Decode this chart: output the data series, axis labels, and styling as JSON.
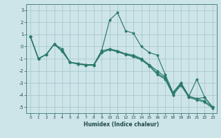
{
  "xlabel": "Humidex (Indice chaleur)",
  "ylabel": "",
  "xlim": [
    -0.5,
    23.5
  ],
  "ylim": [
    -5.5,
    3.5
  ],
  "yticks": [
    -5,
    -4,
    -3,
    -2,
    -1,
    0,
    1,
    2,
    3
  ],
  "xticks": [
    0,
    1,
    2,
    3,
    4,
    5,
    6,
    7,
    8,
    9,
    10,
    11,
    12,
    13,
    14,
    15,
    16,
    17,
    18,
    19,
    20,
    21,
    22,
    23
  ],
  "bg_color": "#cde4e8",
  "line_color": "#2a7a6a",
  "grid_color": "#aac8d0",
  "lines": [
    {
      "x": [
        0,
        1,
        2,
        3,
        4,
        5,
        6,
        7,
        8,
        9,
        10,
        11,
        12,
        13,
        14,
        15,
        16,
        17,
        18,
        19,
        20,
        21,
        22,
        23
      ],
      "y": [
        0.8,
        -1.0,
        -0.65,
        0.2,
        -0.2,
        -1.3,
        -1.4,
        -1.5,
        -1.5,
        -0.3,
        2.2,
        2.8,
        1.3,
        1.1,
        0.0,
        -0.5,
        -0.7,
        -2.3,
        -3.8,
        -3.0,
        -4.1,
        -2.7,
        -4.2,
        -5.0
      ]
    },
    {
      "x": [
        0,
        1,
        2,
        3,
        4,
        5,
        6,
        7,
        8,
        9,
        10,
        11,
        12,
        13,
        14,
        15,
        16,
        17,
        18,
        19,
        20,
        21,
        22,
        23
      ],
      "y": [
        0.8,
        -1.0,
        -0.65,
        0.2,
        -0.35,
        -1.3,
        -1.4,
        -1.5,
        -1.5,
        -0.35,
        -0.2,
        -0.35,
        -0.6,
        -0.7,
        -1.0,
        -1.5,
        -2.0,
        -2.5,
        -3.8,
        -3.0,
        -4.1,
        -4.3,
        -4.2,
        -5.0
      ]
    },
    {
      "x": [
        0,
        1,
        2,
        3,
        4,
        5,
        6,
        7,
        8,
        9,
        10,
        11,
        12,
        13,
        14,
        15,
        16,
        17,
        18,
        19,
        20,
        21,
        22,
        23
      ],
      "y": [
        0.8,
        -1.0,
        -0.65,
        0.2,
        -0.4,
        -1.3,
        -1.45,
        -1.5,
        -1.5,
        -0.5,
        -0.2,
        -0.4,
        -0.65,
        -0.8,
        -1.05,
        -1.55,
        -2.2,
        -2.6,
        -3.9,
        -3.1,
        -4.15,
        -4.3,
        -4.5,
        -5.0
      ]
    },
    {
      "x": [
        0,
        1,
        2,
        3,
        4,
        5,
        6,
        7,
        8,
        9,
        10,
        11,
        12,
        13,
        14,
        15,
        16,
        17,
        18,
        19,
        20,
        21,
        22,
        23
      ],
      "y": [
        0.8,
        -1.0,
        -0.65,
        0.2,
        -0.4,
        -1.3,
        -1.45,
        -1.55,
        -1.55,
        -0.5,
        -0.25,
        -0.45,
        -0.65,
        -0.85,
        -1.1,
        -1.6,
        -2.3,
        -2.7,
        -4.0,
        -3.2,
        -4.2,
        -4.4,
        -4.6,
        -5.1
      ]
    }
  ]
}
